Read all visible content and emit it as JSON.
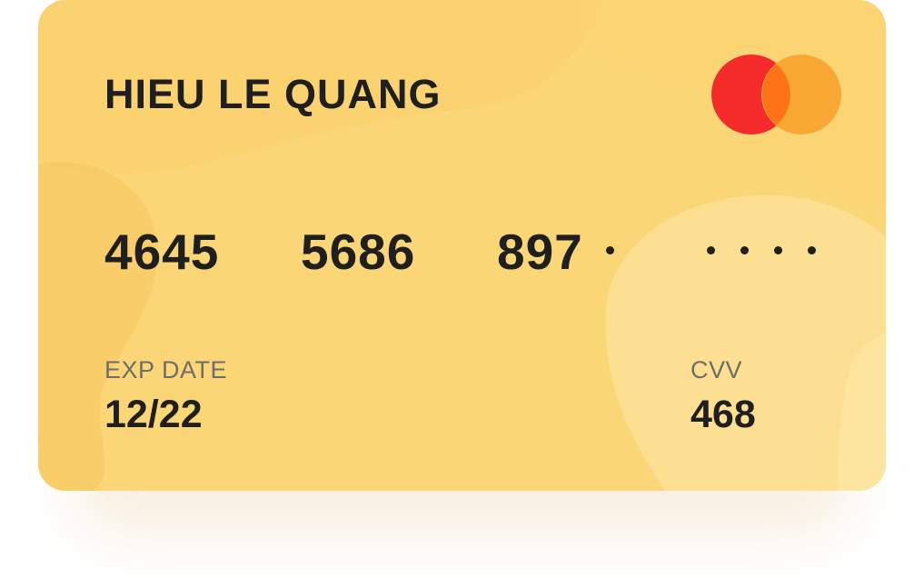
{
  "card": {
    "holder_name": "HIEU LE QUANG",
    "number_groups": [
      "4645",
      "5686",
      "897"
    ],
    "hidden_digits": 5,
    "exp_label": "EXP DATE",
    "exp_value": "12/22",
    "cvv_label": "CVV",
    "cvv_value": "468",
    "brand_icon": "mastercard-logo-icon"
  },
  "colors": {
    "card_base": "#fbd677",
    "card_blob_light": "#fde29a",
    "card_blob_dark": "#f7c95f",
    "text_primary": "#1f1f1f",
    "text_label": "#6d6d6d",
    "brand_red": "#f52b2b",
    "brand_orange": "#f9a833",
    "brand_overlap": "#fd7418"
  }
}
